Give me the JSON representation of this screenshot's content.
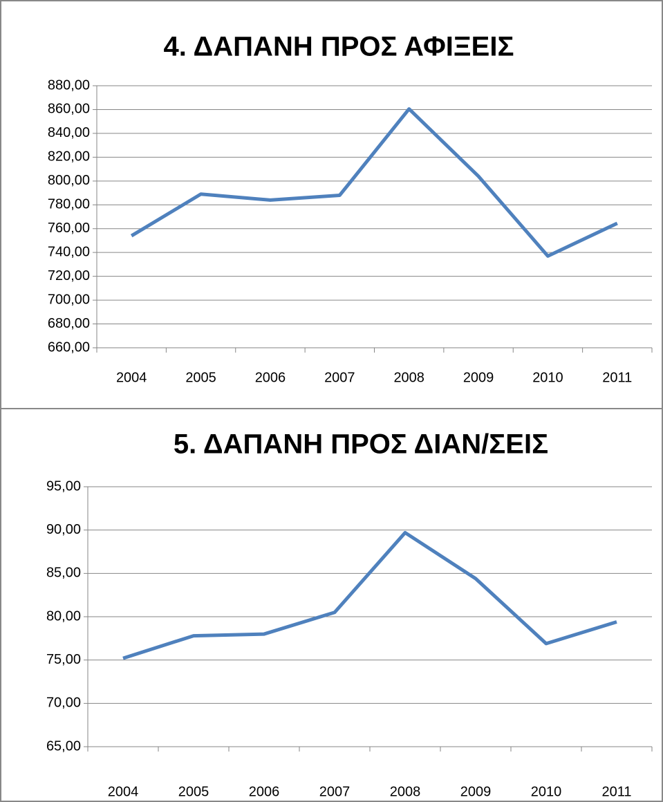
{
  "chart_data": [
    {
      "type": "line",
      "title": "4. ΔΑΠΑΝΗ ΠΡΟΣ ΑΦΙΞΕΙΣ",
      "categories": [
        "2004",
        "2005",
        "2006",
        "2007",
        "2008",
        "2009",
        "2010",
        "2011"
      ],
      "values": [
        754,
        789,
        784,
        788,
        860.5,
        804,
        737,
        764.5
      ],
      "color": "#4f81bd",
      "ylim": [
        660,
        880
      ],
      "yticks": [
        {
          "value": 660,
          "label": "660,00"
        },
        {
          "value": 680,
          "label": "680,00"
        },
        {
          "value": 700,
          "label": "700,00"
        },
        {
          "value": 720,
          "label": "720,00"
        },
        {
          "value": 740,
          "label": "740,00"
        },
        {
          "value": 760,
          "label": "760,00"
        },
        {
          "value": 780,
          "label": "780,00"
        },
        {
          "value": 800,
          "label": "800,00"
        },
        {
          "value": 820,
          "label": "820,00"
        },
        {
          "value": 840,
          "label": "840,00"
        },
        {
          "value": 860,
          "label": "860,00"
        },
        {
          "value": 880,
          "label": "880,00"
        }
      ],
      "grid": true
    },
    {
      "type": "line",
      "title": "5. ΔΑΠΑΝΗ ΠΡΟΣ ΔΙΑΝ/ΣΕΙΣ",
      "categories": [
        "2004",
        "2005",
        "2006",
        "2007",
        "2008",
        "2009",
        "2010",
        "2011"
      ],
      "values": [
        75.2,
        77.8,
        78.0,
        80.5,
        89.7,
        84.4,
        76.9,
        79.4
      ],
      "color": "#4f81bd",
      "ylim": [
        65,
        95
      ],
      "yticks": [
        {
          "value": 65,
          "label": "65,00"
        },
        {
          "value": 70,
          "label": "70,00"
        },
        {
          "value": 75,
          "label": "75,00"
        },
        {
          "value": 80,
          "label": "80,00"
        },
        {
          "value": 85,
          "label": "85,00"
        },
        {
          "value": 90,
          "label": "90,00"
        },
        {
          "value": 95,
          "label": "95,00"
        }
      ],
      "grid": true
    }
  ]
}
